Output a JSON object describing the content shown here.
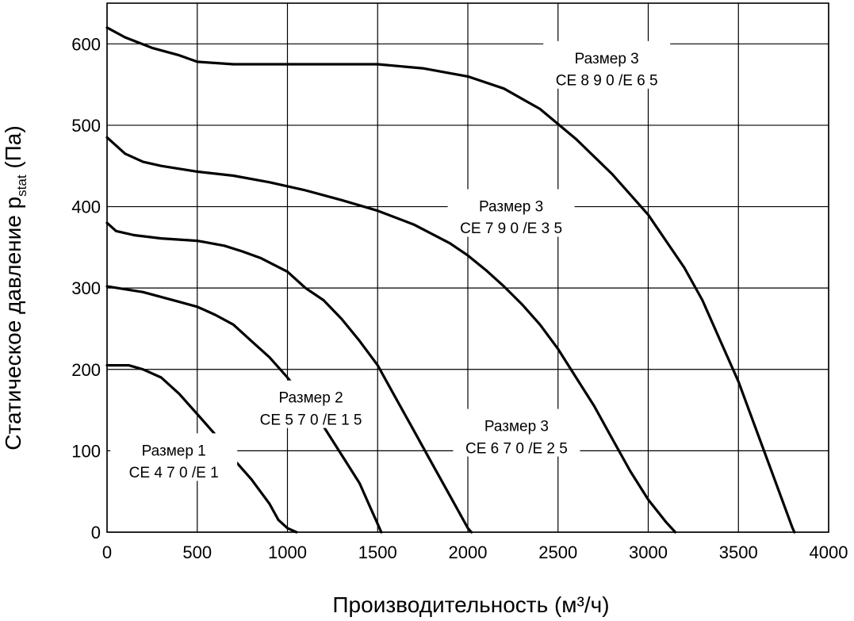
{
  "chart_data": {
    "type": "line",
    "xlabel": "Производительность (м³/ч)",
    "ylabel": "Статическое давление p",
    "ylabel_sub": "stat",
    "ylabel_suffix": " (Па)",
    "xlim": [
      0,
      4000
    ],
    "ylim": [
      0,
      650
    ],
    "xticks": [
      0,
      500,
      1000,
      1500,
      2000,
      2500,
      3000,
      3500,
      4000
    ],
    "yticks": [
      0,
      100,
      200,
      300,
      400,
      500,
      600
    ],
    "grid": true,
    "series": [
      {
        "name_line1": "Размер 1",
        "name_line2": "CE 4 7 0 /E 1",
        "x": [
          0,
          120,
          200,
          300,
          400,
          500,
          600,
          700,
          800,
          900,
          950,
          1000,
          1050
        ],
        "y": [
          205,
          205,
          200,
          190,
          170,
          145,
          120,
          90,
          65,
          35,
          15,
          5,
          0
        ]
      },
      {
        "name_line1": "Размер 2",
        "name_line2": "CE 5 7 0 /E 1 5",
        "x": [
          0,
          200,
          400,
          500,
          600,
          700,
          800,
          900,
          1000,
          1100,
          1200,
          1300,
          1400,
          1450,
          1500,
          1520
        ],
        "y": [
          302,
          295,
          283,
          277,
          267,
          255,
          235,
          215,
          190,
          162,
          130,
          95,
          60,
          35,
          10,
          0
        ]
      },
      {
        "name_line1": "Размер 3",
        "name_line2": "CE 6 7 0 /E 2 5",
        "x": [
          0,
          50,
          150,
          300,
          500,
          650,
          750,
          850,
          1000,
          1100,
          1200,
          1300,
          1400,
          1500,
          1600,
          1700,
          1800,
          1900,
          2000,
          2020
        ],
        "y": [
          380,
          370,
          365,
          361,
          358,
          352,
          345,
          337,
          320,
          300,
          285,
          262,
          235,
          205,
          165,
          125,
          85,
          45,
          5,
          0
        ]
      },
      {
        "name_line1": "Размер 3",
        "name_line2": "CE 7 9 0 /E 3 5",
        "x": [
          0,
          100,
          200,
          300,
          500,
          700,
          900,
          1100,
          1300,
          1500,
          1700,
          1900,
          2000,
          2100,
          2200,
          2300,
          2400,
          2500,
          2600,
          2700,
          2800,
          2900,
          3000,
          3100,
          3150
        ],
        "y": [
          485,
          465,
          455,
          450,
          443,
          438,
          430,
          420,
          408,
          395,
          378,
          355,
          340,
          322,
          302,
          280,
          255,
          225,
          190,
          155,
          115,
          75,
          40,
          12,
          0
        ]
      },
      {
        "name_line1": "Размер 3",
        "name_line2": "CE 8 9 0 /E 6 5",
        "x": [
          0,
          100,
          250,
          400,
          500,
          700,
          900,
          1300,
          1500,
          1750,
          2000,
          2200,
          2400,
          2600,
          2800,
          3000,
          3200,
          3300,
          3400,
          3500,
          3600,
          3700,
          3800,
          3810
        ],
        "y": [
          620,
          608,
          595,
          586,
          578,
          575,
          575,
          575,
          575,
          570,
          560,
          545,
          520,
          483,
          440,
          390,
          325,
          285,
          235,
          185,
          125,
          65,
          5,
          0
        ]
      }
    ]
  }
}
